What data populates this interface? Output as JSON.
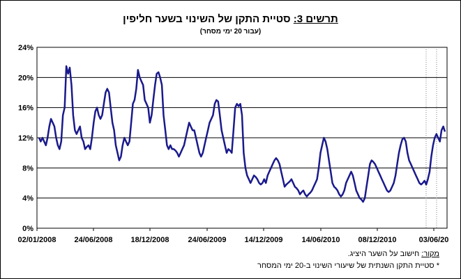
{
  "title": {
    "label": "תרשים 3:",
    "text": " סטיית התקן של השינוי בשער חליפין"
  },
  "subtitle": "(עבור 20 ימי מסחר)",
  "source": {
    "label": "מקור:",
    "text": " חישוב על השער היציג."
  },
  "footnote": "* סטיית התקן השנתית של שיעורי השינוי ב-20 ימי המסחר",
  "colors": {
    "series": "#1a1a8c",
    "grid": "#000000"
  },
  "chart_data": {
    "type": "line",
    "title": "תרשים 3: סטיית התקן של השינוי בשער חליפין",
    "subtitle": "(עבור 20 ימי מסחר)",
    "xlabel": "",
    "ylabel": "",
    "ylim": [
      0,
      24
    ],
    "yticks": [
      "0%",
      "4%",
      "8%",
      "12%",
      "16%",
      "20%",
      "24%"
    ],
    "xticks": [
      "02/01/2008",
      "24/06/2008",
      "18/12/2008",
      "24/06/2009",
      "14/12/2009",
      "14/06/2010",
      "08/12/2010",
      "03/06/20"
    ],
    "grid": true,
    "legend": "none",
    "series": [
      {
        "values": [
          12,
          11.5,
          12,
          11.5,
          11,
          12,
          13.5,
          14.5,
          14,
          13.5,
          12,
          11,
          10.5,
          11.5,
          15,
          16,
          21.5,
          20.5,
          21.3,
          19,
          15,
          13,
          12.5,
          13,
          13.5,
          12,
          11.5,
          10.5,
          10.8,
          11,
          10.5,
          12,
          14,
          15.5,
          16,
          15,
          14.5,
          15,
          16.5,
          18,
          18.5,
          18,
          16,
          14,
          13,
          11,
          10,
          9,
          9.5,
          11,
          12,
          11.5,
          11,
          11.5,
          14,
          16.5,
          17,
          18.5,
          21,
          20,
          19.5,
          19,
          17,
          16.5,
          16,
          14,
          15,
          17,
          19,
          20.5,
          20.7,
          20,
          19,
          15,
          13,
          11,
          10.5,
          11,
          10.5,
          10.5,
          10.3,
          10,
          9.5,
          10,
          10.5,
          11,
          12,
          13,
          14,
          13.5,
          13,
          13,
          12,
          11,
          10,
          9.5,
          10,
          11,
          12,
          13,
          14,
          14.5,
          15,
          16.5,
          17,
          16.8,
          15,
          13,
          12,
          11,
          10,
          10.5,
          10.3,
          10,
          13,
          16,
          16.5,
          16.2,
          16.5,
          15,
          10,
          8,
          7,
          6.5,
          6,
          6.5,
          7,
          6.8,
          6.5,
          6,
          5.8,
          6,
          6.5,
          6,
          7,
          7.5,
          8,
          8.5,
          9,
          9.3,
          9,
          8.5,
          7.5,
          6.5,
          5.5,
          5.8,
          6,
          6.2,
          6.5,
          6,
          5.5,
          5.3,
          5,
          4.5,
          4.8,
          5,
          4.5,
          4.2,
          4.5,
          4.7,
          5,
          5.5,
          6,
          6.5,
          8,
          10,
          11,
          12,
          11.5,
          10.5,
          9,
          7.5,
          6,
          5.5,
          5.3,
          5,
          4.5,
          4.2,
          4.5,
          5,
          6,
          6.5,
          7,
          7.5,
          7,
          6,
          5,
          4.5,
          4,
          3.8,
          3.5,
          4,
          5.5,
          7,
          8.5,
          9,
          8.8,
          8.5,
          8,
          7.5,
          7,
          6.5,
          6,
          5.5,
          5,
          4.8,
          5,
          5.5,
          6,
          7,
          8.5,
          10,
          11,
          11.8,
          12,
          11.5,
          10,
          9,
          8.5,
          8,
          7.5,
          7,
          6.5,
          6,
          5.8,
          6,
          6.3,
          5.8,
          6.5,
          7.5,
          9.5,
          11,
          12,
          12.5,
          12,
          11.5,
          13,
          13.5,
          12.8
        ]
      }
    ]
  }
}
